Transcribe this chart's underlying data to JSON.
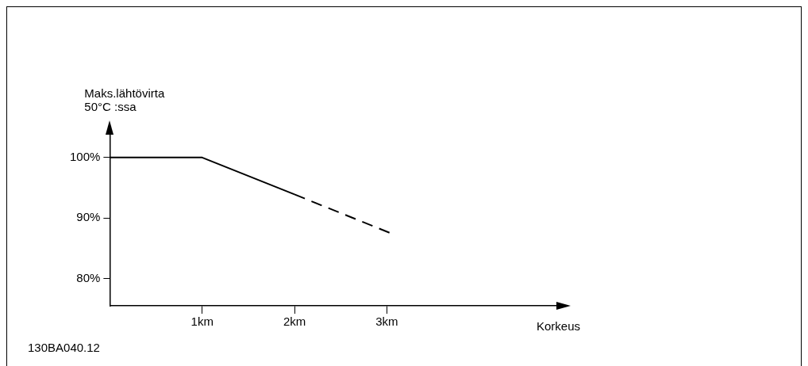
{
  "chart_data": {
    "type": "line",
    "ylabel": "Maks.lähtövirta\n50°C :ssa",
    "xlabel": "Korkeus",
    "annotations": [
      "130BA040.12"
    ],
    "series": [
      {
        "x": [
          0,
          1,
          2
        ],
        "values": [
          100,
          100,
          93.9
        ],
        "color": "#000000",
        "line_style": "solid"
      },
      {
        "x": [
          2,
          3.04
        ],
        "values": [
          93.9,
          87.5
        ],
        "color": "#000000",
        "line_style": "dashed"
      }
    ],
    "xlim": [
      0,
      4.87
    ],
    "ylim": [
      75.5,
      104.3
    ],
    "xticks": [
      {
        "value": 1,
        "label": "1km"
      },
      {
        "value": 2,
        "label": "2km"
      },
      {
        "value": 3,
        "label": "3km"
      }
    ],
    "yticks": [
      {
        "value": 80,
        "label": "80%"
      },
      {
        "value": 90,
        "label": "90%"
      },
      {
        "value": 100,
        "label": "100%"
      }
    ],
    "grid": false,
    "legend": false,
    "marker": "none"
  }
}
